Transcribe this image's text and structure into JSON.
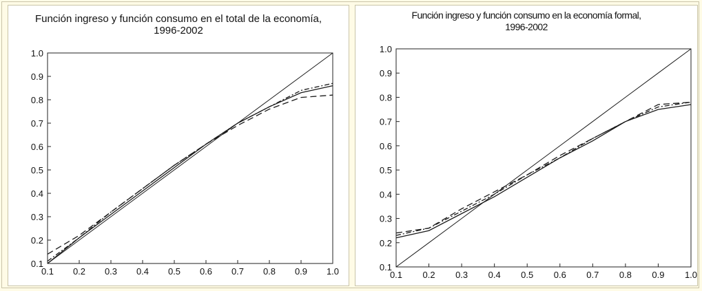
{
  "chart_data": [
    {
      "type": "line",
      "title": "Función ingreso y función consumo en el total de la economía, 1996-2002",
      "title_line1": "Función ingreso y función consumo en el total de la economía,",
      "title_line2": "1996-2002",
      "xlabel": "",
      "ylabel": "",
      "xlim": [
        0.1,
        1.0
      ],
      "ylim": [
        0.1,
        1.0
      ],
      "x_ticks": [
        "0.1",
        "0.2",
        "0.3",
        "0.4",
        "0.5",
        "0.6",
        "0.7",
        "0.8",
        "0.9",
        "1.0"
      ],
      "y_ticks": [
        "0.1",
        "0.2",
        "0.3",
        "0.4",
        "0.5",
        "0.6",
        "0.7",
        "0.8",
        "0.9",
        "1.0"
      ],
      "grid": false,
      "x": [
        0.1,
        0.2,
        0.3,
        0.4,
        0.5,
        0.6,
        0.7,
        0.8,
        0.9,
        1.0
      ],
      "series": [
        {
          "style": "solid",
          "values": [
            0.1,
            0.2,
            0.3,
            0.4,
            0.5,
            0.6,
            0.7,
            0.8,
            0.9,
            1.0
          ]
        },
        {
          "style": "solid",
          "values": [
            0.1,
            0.21,
            0.31,
            0.41,
            0.51,
            0.61,
            0.7,
            0.77,
            0.83,
            0.86
          ]
        },
        {
          "style": "dashdot",
          "values": [
            0.11,
            0.21,
            0.32,
            0.42,
            0.52,
            0.61,
            0.7,
            0.77,
            0.84,
            0.87
          ]
        },
        {
          "style": "dashed",
          "values": [
            0.14,
            0.22,
            0.32,
            0.42,
            0.52,
            0.61,
            0.69,
            0.76,
            0.81,
            0.82
          ]
        }
      ]
    },
    {
      "type": "line",
      "title": "Función ingreso y función consumo en la economía formal, 1996-2002",
      "title_line1": "Función ingreso y función consumo en la economía formal,",
      "title_line2": "1996-2002",
      "xlabel": "",
      "ylabel": "",
      "xlim": [
        0.1,
        1.0
      ],
      "ylim": [
        0.1,
        1.0
      ],
      "x_ticks": [
        "0.1",
        "0.2",
        "0.3",
        "0.4",
        "0.5",
        "0.6",
        "0.7",
        "0.8",
        "0.9",
        "1.0"
      ],
      "y_ticks": [
        "0.1",
        "0.2",
        "0.3",
        "0.4",
        "0.5",
        "0.6",
        "0.7",
        "0.8",
        "0.9",
        "1.0"
      ],
      "grid": false,
      "x": [
        0.1,
        0.2,
        0.3,
        0.4,
        0.5,
        0.6,
        0.7,
        0.8,
        0.9,
        1.0
      ],
      "series": [
        {
          "style": "solid",
          "values": [
            0.1,
            0.2,
            0.3,
            0.4,
            0.5,
            0.6,
            0.7,
            0.8,
            0.9,
            1.0
          ]
        },
        {
          "style": "solid",
          "values": [
            0.22,
            0.25,
            0.32,
            0.39,
            0.47,
            0.55,
            0.62,
            0.7,
            0.75,
            0.77
          ]
        },
        {
          "style": "dashdot",
          "values": [
            0.23,
            0.26,
            0.33,
            0.4,
            0.48,
            0.55,
            0.63,
            0.7,
            0.76,
            0.78
          ]
        },
        {
          "style": "dashed",
          "values": [
            0.24,
            0.26,
            0.34,
            0.41,
            0.48,
            0.56,
            0.63,
            0.7,
            0.77,
            0.78
          ]
        }
      ]
    }
  ]
}
